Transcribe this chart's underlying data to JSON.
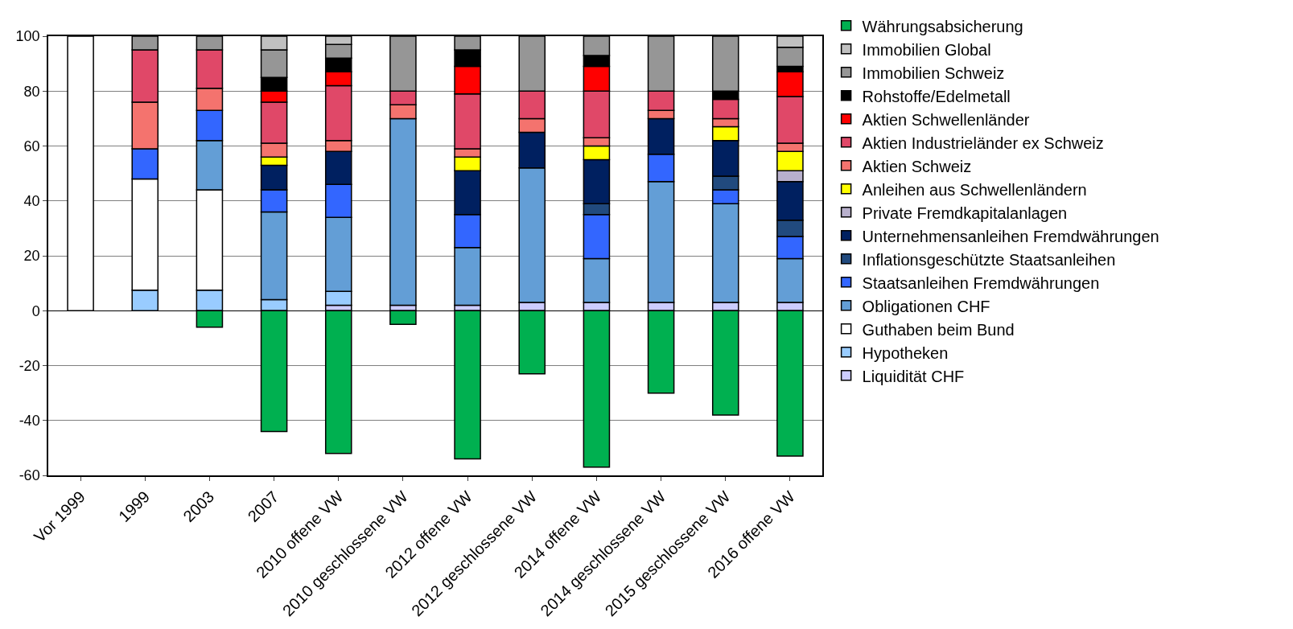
{
  "chart_data": {
    "type": "bar",
    "stacked": true,
    "categories": [
      "Vor 1999",
      "1999",
      "2003",
      "2007",
      "2010 offene VW",
      "2010 geschlossene VW",
      "2012 offene VW",
      "2012 geschlossene VW",
      "2014 offene VW",
      "2014 geschlossene VW",
      "2015 geschlossene VW",
      "2016 offene VW"
    ],
    "series": [
      {
        "name": "Liquidität CHF",
        "color": "#ccccff",
        "values": [
          null,
          null,
          null,
          null,
          2,
          2,
          2,
          3,
          3,
          3,
          3,
          3
        ]
      },
      {
        "name": "Hypotheken",
        "color": "#99ccff",
        "values": [
          null,
          7.5,
          7.5,
          4,
          5,
          null,
          null,
          null,
          null,
          null,
          null,
          null
        ]
      },
      {
        "name": "Guthaben beim Bund",
        "color": "#ffffff",
        "values": [
          100,
          40.5,
          36.5,
          null,
          null,
          null,
          null,
          null,
          null,
          null,
          null,
          null
        ]
      },
      {
        "name": "Obligationen CHF",
        "color": "#639ed6",
        "values": [
          null,
          null,
          18,
          32,
          27,
          68,
          21,
          49,
          16,
          44,
          36,
          16
        ]
      },
      {
        "name": "Staatsanleihen Fremdwährungen",
        "color": "#3366ff",
        "values": [
          null,
          11,
          11,
          8,
          12,
          null,
          12,
          null,
          16,
          10,
          5,
          8
        ]
      },
      {
        "name": "Inflationsgeschützte Staatsanleihen",
        "color": "#214a7e",
        "values": [
          null,
          null,
          null,
          null,
          null,
          null,
          null,
          null,
          4,
          null,
          5,
          6
        ]
      },
      {
        "name": "Unternehmensanleihen Fremdwährungen",
        "color": "#002060",
        "values": [
          null,
          null,
          null,
          9,
          12,
          null,
          16,
          13,
          16,
          13,
          13,
          14
        ]
      },
      {
        "name": "Private Fremdkapitalanlagen",
        "color": "#b8b0cc",
        "values": [
          null,
          null,
          null,
          null,
          null,
          null,
          null,
          null,
          null,
          null,
          null,
          4
        ]
      },
      {
        "name": "Anleihen aus Schwellenländern",
        "color": "#ffff00",
        "values": [
          null,
          null,
          null,
          3,
          null,
          null,
          5,
          null,
          5,
          null,
          5,
          7
        ]
      },
      {
        "name": "Aktien Schweiz",
        "color": "#f4736e",
        "values": [
          null,
          17,
          8,
          5,
          4,
          5,
          3,
          5,
          3,
          3,
          3,
          3
        ]
      },
      {
        "name": "Aktien Industrieländer ex Schweiz",
        "color": "#e04868",
        "values": [
          null,
          19,
          14,
          15,
          20,
          5,
          20,
          10,
          17,
          7,
          7,
          17
        ]
      },
      {
        "name": "Aktien Schwellenländer",
        "color": "#ff0000",
        "values": [
          null,
          null,
          null,
          4,
          5,
          null,
          10,
          null,
          9,
          null,
          null,
          9
        ]
      },
      {
        "name": "Rohstoffe/Edelmetall",
        "color": "#000000",
        "values": [
          null,
          null,
          null,
          5,
          5,
          null,
          6,
          null,
          4,
          null,
          3,
          2
        ]
      },
      {
        "name": "Immobilien Schweiz",
        "color": "#969696",
        "values": [
          null,
          5,
          5,
          10,
          5,
          20,
          5,
          20,
          7,
          20,
          20,
          7
        ]
      },
      {
        "name": "Immobilien Global",
        "color": "#c0c0c0",
        "values": [
          null,
          null,
          null,
          5,
          3,
          null,
          null,
          null,
          null,
          null,
          null,
          4
        ]
      },
      {
        "name": "Währungsabsicherung",
        "color": "#00b050",
        "values": [
          null,
          null,
          -6,
          -44,
          -52,
          -5,
          -54,
          -23,
          -57,
          -30,
          -38,
          -53
        ]
      }
    ],
    "ylim": [
      -60,
      100
    ],
    "yticks": [
      -60,
      -40,
      -20,
      0,
      20,
      40,
      60,
      80,
      100
    ],
    "grid": "y",
    "legend": "right"
  }
}
